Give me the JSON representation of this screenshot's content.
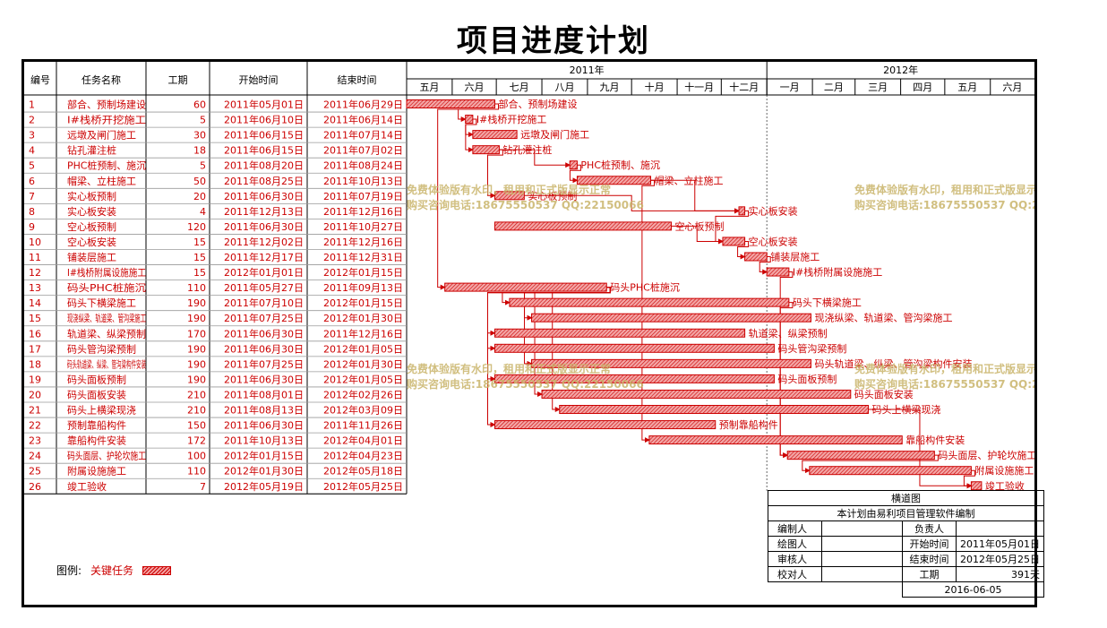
{
  "title": "项目进度计划",
  "headers": {
    "id": "编号",
    "name": "任务名称",
    "duration": "工期",
    "start": "开始时间",
    "end": "结束时间"
  },
  "timeline": {
    "years": [
      {
        "label": "2011年",
        "from": "2011-05-01",
        "to": "2012-01-01"
      },
      {
        "label": "2012年",
        "from": "2012-01-01",
        "to": "2012-07-01"
      }
    ],
    "months": [
      {
        "label": "五月",
        "from": "2011-05-01"
      },
      {
        "label": "六月",
        "from": "2011-06-01"
      },
      {
        "label": "七月",
        "from": "2011-07-01"
      },
      {
        "label": "八月",
        "from": "2011-08-01"
      },
      {
        "label": "九月",
        "from": "2011-09-01"
      },
      {
        "label": "十月",
        "from": "2011-10-01"
      },
      {
        "label": "十一月",
        "from": "2011-11-01"
      },
      {
        "label": "十二月",
        "from": "2011-12-01"
      },
      {
        "label": "一月",
        "from": "2012-01-01"
      },
      {
        "label": "二月",
        "from": "2012-02-01"
      },
      {
        "label": "三月",
        "from": "2012-03-01"
      },
      {
        "label": "四月",
        "from": "2012-04-01"
      },
      {
        "label": "五月",
        "from": "2012-05-01"
      },
      {
        "label": "六月",
        "from": "2012-06-01"
      }
    ],
    "range": [
      "2011-05-01",
      "2012-07-01"
    ],
    "today_line": "2012-01-01"
  },
  "chart_data": {
    "type": "gantt",
    "title": "项目进度计划",
    "series": [
      {
        "id": "1",
        "name": "码头后方施工临时设施、预制场建设",
        "label": "部合、预制场建设",
        "duration": 60,
        "start": "2011年05月01日",
        "end": "2011年06月29日",
        "s": "2011-05-01",
        "e": "2011-06-29"
      },
      {
        "id": "2",
        "name": "Ⅰ#栈桥开挖施工",
        "label": "Ⅰ#栈桥开挖施工",
        "duration": 5,
        "start": "2011年06月10日",
        "end": "2011年06月14日",
        "s": "2011-06-10",
        "e": "2011-06-14"
      },
      {
        "id": "3",
        "name": "远墩及闸门施工",
        "label": "远墩及闸门施工",
        "duration": 30,
        "start": "2011年06月15日",
        "end": "2011年07月14日",
        "s": "2011-06-15",
        "e": "2011-07-14"
      },
      {
        "id": "4",
        "name": "钻孔灌注桩",
        "label": "钻孔灌注桩",
        "duration": 18,
        "start": "2011年06月15日",
        "end": "2011年07月02日",
        "s": "2011-06-15",
        "e": "2011-07-02"
      },
      {
        "id": "5",
        "name": "PHC桩预制、施沉",
        "label": "PHC桩预制、施沉",
        "duration": 5,
        "start": "2011年08月20日",
        "end": "2011年08月24日",
        "s": "2011-08-20",
        "e": "2011-08-24"
      },
      {
        "id": "6",
        "name": "帽梁、立柱施工",
        "label": "帽梁、立柱施工",
        "duration": 50,
        "start": "2011年08月25日",
        "end": "2011年10月13日",
        "s": "2011-08-25",
        "e": "2011-10-13"
      },
      {
        "id": "7",
        "name": "实心板预制",
        "label": "实心板预制",
        "duration": 20,
        "start": "2011年06月30日",
        "end": "2011年07月19日",
        "s": "2011-06-30",
        "e": "2011-07-19"
      },
      {
        "id": "8",
        "name": "实心板安装",
        "label": "实心板安装",
        "duration": 4,
        "start": "2011年12月13日",
        "end": "2011年12月16日",
        "s": "2011-12-13",
        "e": "2011-12-16"
      },
      {
        "id": "9",
        "name": "空心板预制",
        "label": "空心板预制",
        "duration": 120,
        "start": "2011年06月30日",
        "end": "2011年10月27日",
        "s": "2011-06-30",
        "e": "2011-10-27"
      },
      {
        "id": "10",
        "name": "空心板安装",
        "label": "空心板安装",
        "duration": 15,
        "start": "2011年12月02日",
        "end": "2011年12月16日",
        "s": "2011-12-02",
        "e": "2011-12-16"
      },
      {
        "id": "11",
        "name": "铺装层施工",
        "label": "铺装层施工",
        "duration": 15,
        "start": "2011年12月17日",
        "end": "2011年12月31日",
        "s": "2011-12-17",
        "e": "2011-12-31"
      },
      {
        "id": "12",
        "name": "Ⅰ#栈桥附属设施施工",
        "label": "Ⅰ#栈桥附属设施施工",
        "duration": 15,
        "start": "2012年01月01日",
        "end": "2012年01月15日",
        "s": "2012-01-01",
        "e": "2012-01-15"
      },
      {
        "id": "13",
        "name": "码头PHC桩施沉",
        "label": "码头PHC桩施沉",
        "duration": 110,
        "start": "2011年05月27日",
        "end": "2011年09月13日",
        "s": "2011-05-27",
        "e": "2011-09-13"
      },
      {
        "id": "14",
        "name": "码头下横梁施工",
        "label": "码头下横梁施工",
        "duration": 190,
        "start": "2011年07月10日",
        "end": "2012年01月15日",
        "s": "2011-07-10",
        "e": "2012-01-15"
      },
      {
        "id": "15",
        "name": "现浇纵梁、轨道梁、管沟梁施工",
        "label": "现浇纵梁、轨道梁、管沟梁施工",
        "duration": 190,
        "start": "2011年07月25日",
        "end": "2012年01月30日",
        "s": "2011-07-25",
        "e": "2012-01-30"
      },
      {
        "id": "16",
        "name": "轨道梁、纵梁预制",
        "label": "轨道梁、纵梁预制",
        "duration": 170,
        "start": "2011年06月30日",
        "end": "2011年12月16日",
        "s": "2011-06-30",
        "e": "2011-12-16"
      },
      {
        "id": "17",
        "name": "码头管沟梁预制",
        "label": "码头管沟梁预制",
        "duration": 190,
        "start": "2011年06月30日",
        "end": "2012年01月05日",
        "s": "2011-06-30",
        "e": "2012-01-05"
      },
      {
        "id": "18",
        "name": "码头轨道梁、纵梁、管沟梁构件安装",
        "label": "码头轨道梁、纵梁、管沟梁构件安装",
        "duration": 190,
        "start": "2011年07月25日",
        "end": "2012年01月30日",
        "s": "2011-07-25",
        "e": "2012-01-30"
      },
      {
        "id": "19",
        "name": "码头面板预制",
        "label": "码头面板预制",
        "duration": 190,
        "start": "2011年06月30日",
        "end": "2012年01月05日",
        "s": "2011-06-30",
        "e": "2012-01-05"
      },
      {
        "id": "20",
        "name": "码头面板安装",
        "label": "码头面板安装",
        "duration": 210,
        "start": "2011年08月01日",
        "end": "2012年02月26日",
        "s": "2011-08-01",
        "e": "2012-02-26"
      },
      {
        "id": "21",
        "name": "码头上横梁现浇",
        "label": "码头上横梁现浇",
        "duration": 210,
        "start": "2011年08月13日",
        "end": "2012年03月09日",
        "s": "2011-08-13",
        "e": "2012-03-09"
      },
      {
        "id": "22",
        "name": "预制靠船构件",
        "label": "预制靠船构件",
        "duration": 150,
        "start": "2011年06月30日",
        "end": "2011年11月26日",
        "s": "2011-06-30",
        "e": "2011-11-26"
      },
      {
        "id": "23",
        "name": "靠船构件安装",
        "label": "靠船构件安装",
        "duration": 172,
        "start": "2011年10月13日",
        "end": "2012年04月01日",
        "s": "2011-10-13",
        "e": "2012-04-01"
      },
      {
        "id": "24",
        "name": "码头面层、护轮坎施工",
        "label": "码头面层、护轮坎施工",
        "duration": 100,
        "start": "2012年01月15日",
        "end": "2012年04月23日",
        "s": "2012-01-15",
        "e": "2012-04-23"
      },
      {
        "id": "25",
        "name": "附属设施施工",
        "label": "附属设施施工",
        "duration": 110,
        "start": "2012年01月30日",
        "end": "2012年05月18日",
        "s": "2012-01-30",
        "e": "2012-05-18"
      },
      {
        "id": "26",
        "name": "竣工验收",
        "label": "竣工验收",
        "duration": 7,
        "start": "2012年05月19日",
        "end": "2012年05月25日",
        "s": "2012-05-19",
        "e": "2012-05-25"
      }
    ],
    "dependencies": [
      [
        1,
        2
      ],
      [
        1,
        13
      ],
      [
        2,
        3
      ],
      [
        2,
        4
      ],
      [
        4,
        5
      ],
      [
        5,
        6
      ],
      [
        4,
        7
      ],
      [
        6,
        8
      ],
      [
        7,
        8
      ],
      [
        8,
        10
      ],
      [
        9,
        10
      ],
      [
        10,
        11
      ],
      [
        11,
        12
      ],
      [
        13,
        14
      ],
      [
        13,
        15
      ],
      [
        13,
        16
      ],
      [
        13,
        17
      ],
      [
        13,
        18
      ],
      [
        13,
        19
      ],
      [
        13,
        20
      ],
      [
        13,
        21
      ],
      [
        13,
        22
      ],
      [
        6,
        23
      ],
      [
        12,
        24
      ],
      [
        14,
        24
      ],
      [
        24,
        25
      ],
      [
        21,
        26
      ],
      [
        25,
        26
      ]
    ]
  },
  "legend": {
    "title": "图例:",
    "critical": "关键任务"
  },
  "watermark": {
    "line1": "免费体验版有水印，租用和正式版显示正常",
    "line2": "购买咨询电话:18675550537 QQ:22150066"
  },
  "info_block": {
    "heading": "横道图",
    "note": "本计划由易利项目管理软件编制",
    "editor_label": "编制人",
    "editor_value": "",
    "owner_label": "负责人",
    "owner_value": "",
    "drawer_label": "绘图人",
    "drawer_value": "",
    "start_label": "开始时间",
    "start_value": "2011年05月01日",
    "reviewer_label": "审核人",
    "reviewer_value": "",
    "end_label": "结束时间",
    "end_value": "2012年05月25日",
    "checker_label": "校对人",
    "checker_value": "",
    "duration_label": "工期",
    "duration_value": "391天",
    "date": "2016-06-05"
  },
  "colors": {
    "accent": "#cc0000",
    "bar_fill": "#f0a0a0",
    "line": "#000000",
    "grid": "#9a9a9a"
  }
}
